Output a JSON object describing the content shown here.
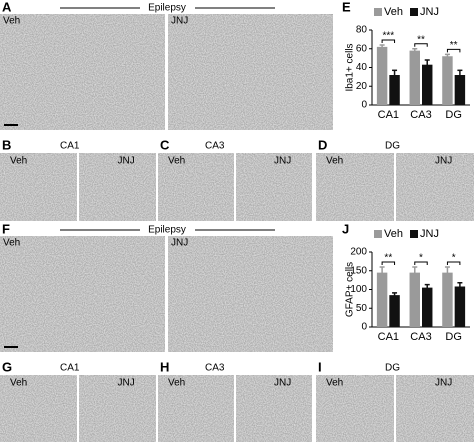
{
  "panels": [
    {
      "label": "A",
      "region": "Epilepsy",
      "left": "Veh",
      "right": "JNJ"
    },
    {
      "label": "B",
      "region": "CA1",
      "left": "Veh",
      "right": "JNJ"
    },
    {
      "label": "C",
      "region": "CA3",
      "left": "Veh",
      "right": "JNJ"
    },
    {
      "label": "D",
      "region": "DG",
      "left": "Veh",
      "right": "JNJ"
    },
    {
      "label": "F",
      "region": "Epilepsy",
      "left": "Veh",
      "right": "JNJ"
    },
    {
      "label": "G",
      "region": "CA1",
      "left": "Veh",
      "right": "JNJ"
    },
    {
      "label": "H",
      "region": "CA3",
      "left": "Veh",
      "right": "JNJ"
    },
    {
      "label": "I",
      "region": "DG",
      "left": "Veh",
      "right": "JNJ"
    }
  ],
  "chart_data": [
    {
      "type": "bar",
      "panel_label": "E",
      "ylabel": "Iba1+ cells",
      "categories": [
        "CA1",
        "CA3",
        "DG"
      ],
      "series": [
        {
          "name": "Veh",
          "color": "#9a9a9a",
          "values": [
            62,
            58,
            52
          ],
          "errors": [
            2,
            2,
            2
          ]
        },
        {
          "name": "JNJ",
          "color": "#111111",
          "values": [
            32,
            43,
            32
          ],
          "errors": [
            5,
            5,
            5
          ]
        }
      ],
      "significance": [
        "***",
        "**",
        "**"
      ],
      "ylim": [
        0,
        80
      ],
      "yticks": [
        0,
        20,
        40,
        60,
        80
      ]
    },
    {
      "type": "bar",
      "panel_label": "J",
      "ylabel": "GFAP+ cells",
      "categories": [
        "CA1",
        "CA3",
        "DG"
      ],
      "series": [
        {
          "name": "Veh",
          "color": "#9a9a9a",
          "values": [
            145,
            145,
            145
          ],
          "errors": [
            15,
            15,
            15
          ]
        },
        {
          "name": "JNJ",
          "color": "#111111",
          "values": [
            85,
            105,
            108
          ],
          "errors": [
            6,
            8,
            10
          ]
        }
      ],
      "significance": [
        "**",
        "*",
        "*"
      ],
      "ylim": [
        0,
        200
      ],
      "yticks": [
        0,
        50,
        100,
        150,
        200
      ]
    }
  ]
}
